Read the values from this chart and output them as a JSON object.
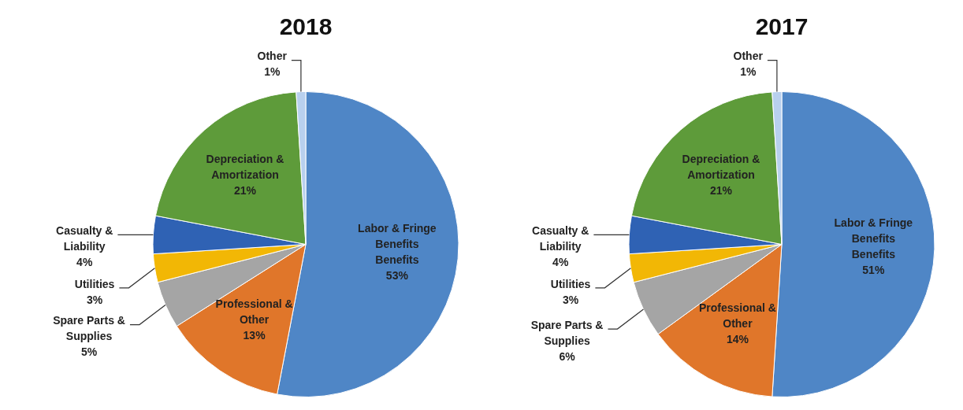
{
  "chart_data": [
    {
      "type": "pie",
      "title": "2018",
      "categories": [
        "Labor & Fringe Benefits Benefits",
        "Professional & Other",
        "Spare Parts & Supplies",
        "Utilities",
        "Casualty & Liability",
        "Depreciation & Amortization",
        "Other"
      ],
      "values": [
        53,
        13,
        5,
        3,
        4,
        21,
        1
      ],
      "value_labels": [
        "53%",
        "13%",
        "5%",
        "3%",
        "4%",
        "21%",
        "1%"
      ],
      "colors": [
        "#4f86c6",
        "#e0762a",
        "#a5a5a5",
        "#f2b705",
        "#2f62b4",
        "#5e9b3a",
        "#b8d0ee"
      ],
      "legend": false
    },
    {
      "type": "pie",
      "title": "2017",
      "categories": [
        "Labor & Fringe Benefits Benefits",
        "Professional & Other",
        "Spare Parts & Supplies",
        "Utilities",
        "Casualty & Liability",
        "Depreciation & Amortization",
        "Other"
      ],
      "values": [
        51,
        14,
        6,
        3,
        4,
        21,
        1
      ],
      "value_labels": [
        "51%",
        "14%",
        "6%",
        "3%",
        "4%",
        "21%",
        "1%"
      ],
      "colors": [
        "#4f86c6",
        "#e0762a",
        "#a5a5a5",
        "#f2b705",
        "#2f62b4",
        "#5e9b3a",
        "#b8d0ee"
      ],
      "legend": false
    }
  ]
}
